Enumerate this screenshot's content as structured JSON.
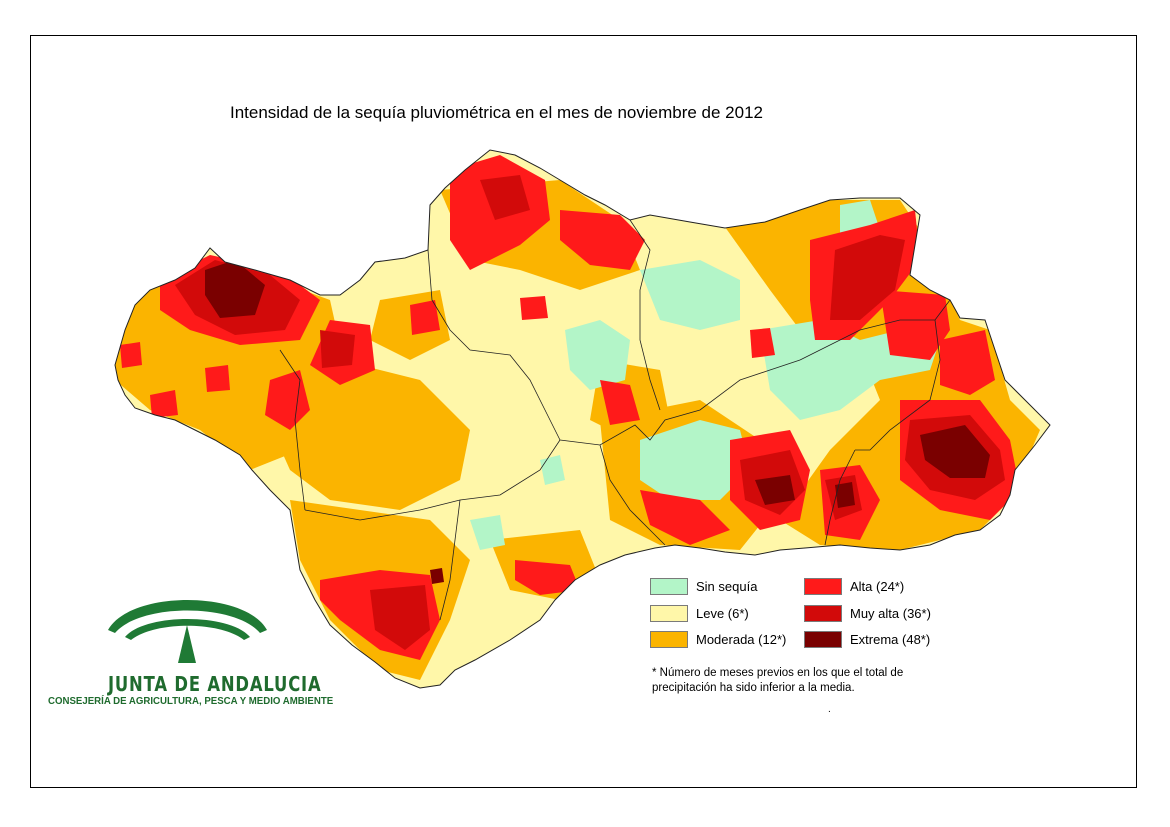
{
  "title": "Intensidad de la sequía pluviométrica en el mes de noviembre de 2012",
  "legend": {
    "items": [
      {
        "label": "Sin sequía",
        "color": "#b3f5c8"
      },
      {
        "label": "Leve (6*)",
        "color": "#fff7a9"
      },
      {
        "label": "Moderada (12*)",
        "color": "#fbb400"
      },
      {
        "label": "Alta (24*)",
        "color": "#ff1a1a"
      },
      {
        "label": "Muy alta (36*)",
        "color": "#d20a0a"
      },
      {
        "label": "Extrema (48*)",
        "color": "#7a0000"
      }
    ],
    "note": "* Número de meses previos en los que el total de precipitación ha sido inferior a la media.",
    "dot": "."
  },
  "organization": {
    "name": "JUNTA DE ANDALUCIA",
    "department": "CONSEJERÍA DE AGRICULTURA, PESCA Y MEDIO AMBIENTE",
    "logo_color": "#1f7a35"
  },
  "map": {
    "region_icon": "andalucia-region-outline"
  }
}
